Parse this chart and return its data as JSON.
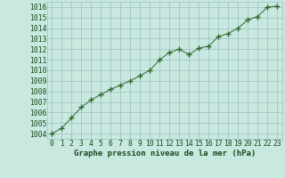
{
  "x": [
    0,
    1,
    2,
    3,
    4,
    5,
    6,
    7,
    8,
    9,
    10,
    11,
    12,
    13,
    14,
    15,
    16,
    17,
    18,
    19,
    20,
    21,
    22,
    23
  ],
  "y": [
    1004.0,
    1004.5,
    1005.5,
    1006.5,
    1007.2,
    1007.7,
    1008.2,
    1008.6,
    1009.0,
    1009.5,
    1010.0,
    1011.0,
    1011.7,
    1012.0,
    1011.5,
    1012.1,
    1012.3,
    1013.2,
    1013.5,
    1014.0,
    1014.8,
    1015.1,
    1016.0,
    1016.1
  ],
  "line_color": "#2d6a2d",
  "marker": "+",
  "marker_size": 4,
  "bg_color": "#c8e8e0",
  "grid_color": "#9dbfbf",
  "ylabel_ticks": [
    1004,
    1005,
    1006,
    1007,
    1008,
    1009,
    1010,
    1011,
    1012,
    1013,
    1014,
    1015,
    1016
  ],
  "xlabel": "Graphe pression niveau de la mer (hPa)",
  "ylim": [
    1003.5,
    1016.5
  ],
  "xlim": [
    -0.5,
    23.5
  ],
  "line_color_dark": "#1a4a1a",
  "tick_color": "#1a4a1a",
  "xlabel_fontsize": 6.5,
  "label_fontsize": 5.8
}
